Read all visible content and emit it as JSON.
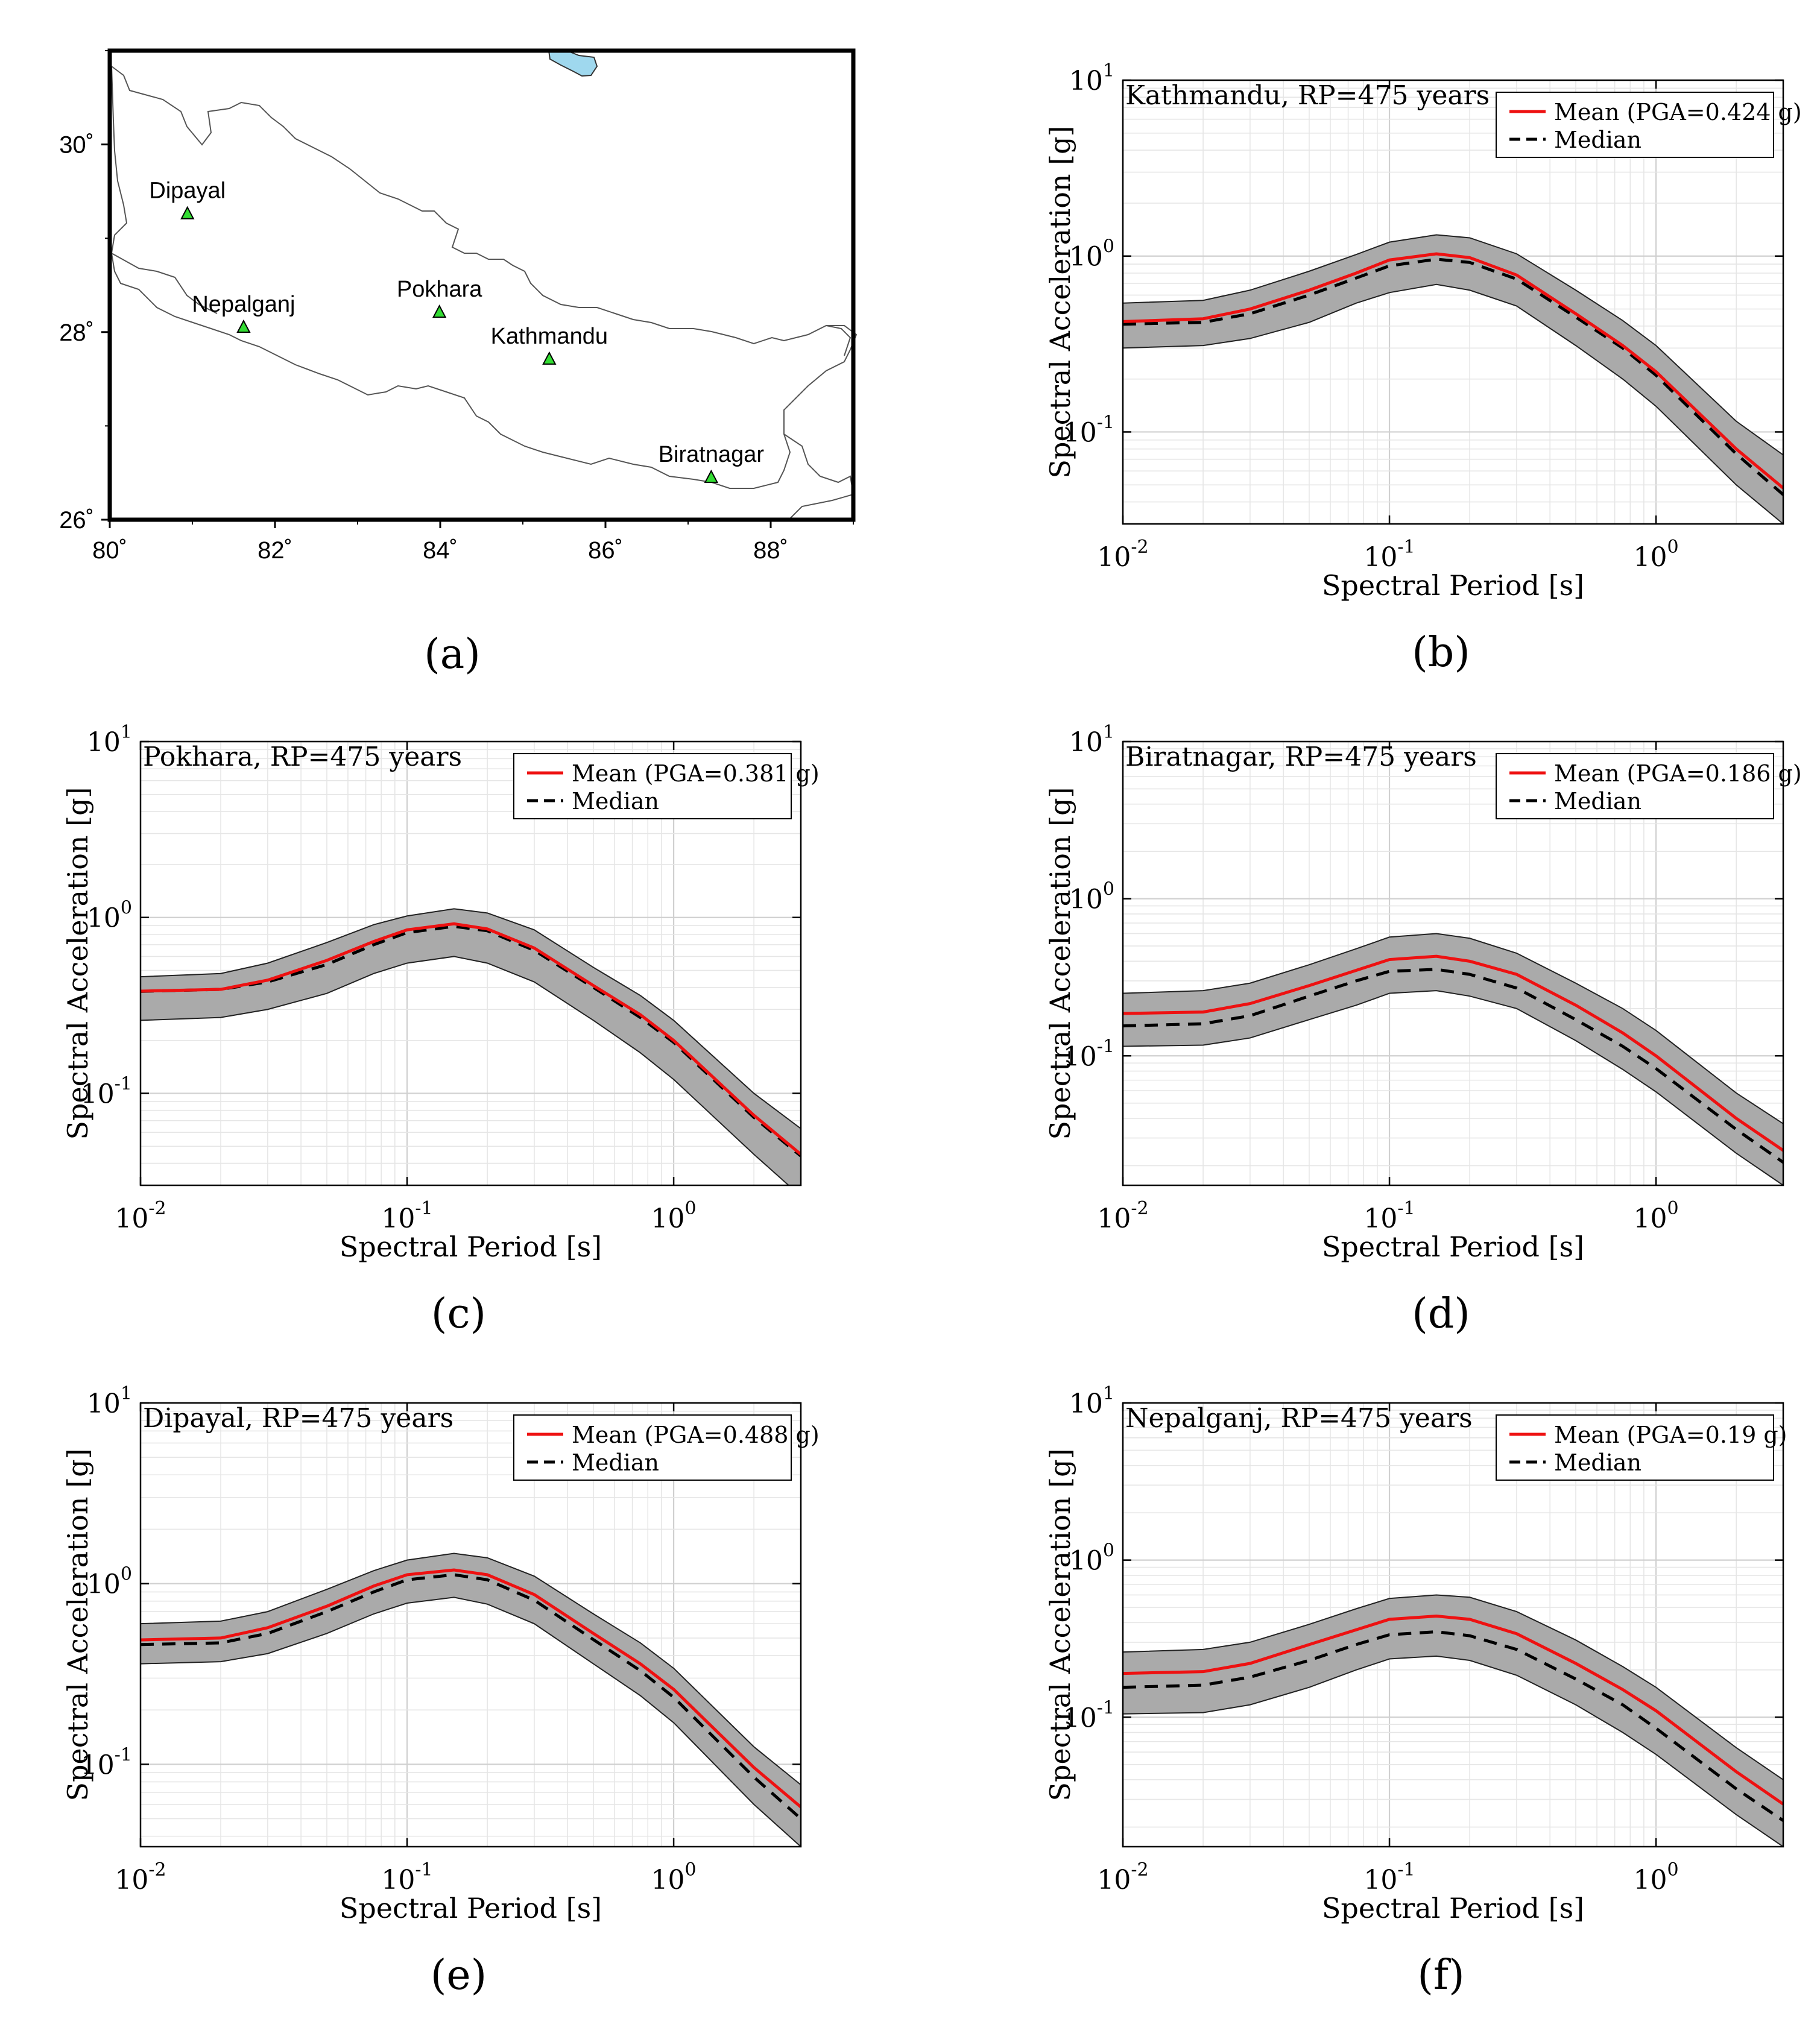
{
  "map": {
    "x_ticks": [
      "80˚",
      "82˚",
      "84˚",
      "86˚",
      "88˚"
    ],
    "y_ticks": [
      "26˚",
      "28˚",
      "30˚"
    ],
    "x_range": [
      80,
      89
    ],
    "y_range": [
      26,
      31
    ],
    "cities": [
      {
        "name": "Dipayal",
        "lon": 80.94,
        "lat": 29.26
      },
      {
        "name": "Nepalganj",
        "lon": 81.62,
        "lat": 28.05
      },
      {
        "name": "Pokhara",
        "lon": 83.99,
        "lat": 28.21
      },
      {
        "name": "Kathmandu",
        "lon": 85.32,
        "lat": 27.71
      },
      {
        "name": "Biratnagar",
        "lon": 87.28,
        "lat": 26.45
      }
    ],
    "marker_color": "#33dd33",
    "lake_color": "#9fd8ee",
    "panel_label": "(a)"
  },
  "axis_common": {
    "xlabel": "Spectral Period [s]",
    "ylabel": "Spectral Acceleration [g]",
    "x_tick_exponents": [
      "-2",
      "-1",
      "0"
    ],
    "y_tick_exponents": [
      "1",
      "0",
      "-1"
    ],
    "tick_base": "10",
    "legend_median": "Median"
  },
  "colors": {
    "mean": "#ee1111",
    "median": "#000000",
    "band": "#aaaaaa"
  },
  "chart_data": [
    {
      "type": "line",
      "title": "Kathmandu, RP=475 years",
      "panel_label": "(b)",
      "legend_mean": "Mean (PGA=0.424 g)",
      "xlim": [
        0.01,
        3
      ],
      "ylim": [
        0.03,
        10
      ],
      "x": [
        0.01,
        0.02,
        0.03,
        0.05,
        0.075,
        0.1,
        0.15,
        0.2,
        0.3,
        0.5,
        0.75,
        1.0,
        2.0,
        3.0
      ],
      "series": [
        {
          "name": "Mean",
          "values": [
            0.424,
            0.44,
            0.5,
            0.64,
            0.8,
            0.95,
            1.03,
            0.98,
            0.78,
            0.47,
            0.31,
            0.22,
            0.08,
            0.048
          ]
        },
        {
          "name": "Median",
          "values": [
            0.41,
            0.42,
            0.47,
            0.6,
            0.75,
            0.88,
            0.96,
            0.92,
            0.74,
            0.45,
            0.3,
            0.21,
            0.075,
            0.044
          ]
        },
        {
          "name": "Upper",
          "values": [
            0.54,
            0.56,
            0.64,
            0.82,
            1.02,
            1.2,
            1.32,
            1.27,
            1.03,
            0.64,
            0.43,
            0.31,
            0.115,
            0.074
          ]
        },
        {
          "name": "Lower",
          "values": [
            0.3,
            0.31,
            0.34,
            0.42,
            0.54,
            0.62,
            0.69,
            0.64,
            0.52,
            0.31,
            0.2,
            0.14,
            0.05,
            0.03
          ]
        }
      ]
    },
    {
      "type": "line",
      "title": "Pokhara, RP=475 years",
      "panel_label": "(c)",
      "legend_mean": "Mean (PGA=0.381 g)",
      "xlim": [
        0.01,
        3
      ],
      "ylim": [
        0.03,
        10
      ],
      "x": [
        0.01,
        0.02,
        0.03,
        0.05,
        0.075,
        0.1,
        0.15,
        0.2,
        0.3,
        0.5,
        0.75,
        1.0,
        2.0,
        3.0
      ],
      "series": [
        {
          "name": "Mean",
          "values": [
            0.381,
            0.39,
            0.44,
            0.57,
            0.73,
            0.85,
            0.92,
            0.86,
            0.67,
            0.41,
            0.28,
            0.2,
            0.075,
            0.045
          ]
        },
        {
          "name": "Median",
          "values": [
            0.38,
            0.39,
            0.43,
            0.54,
            0.7,
            0.82,
            0.89,
            0.84,
            0.65,
            0.4,
            0.27,
            0.195,
            0.073,
            0.044
          ]
        },
        {
          "name": "Upper",
          "values": [
            0.46,
            0.48,
            0.55,
            0.72,
            0.91,
            1.02,
            1.12,
            1.06,
            0.85,
            0.52,
            0.36,
            0.26,
            0.1,
            0.063
          ]
        },
        {
          "name": "Lower",
          "values": [
            0.26,
            0.27,
            0.3,
            0.37,
            0.48,
            0.55,
            0.6,
            0.55,
            0.43,
            0.26,
            0.17,
            0.12,
            0.045,
            0.026
          ]
        }
      ]
    },
    {
      "type": "line",
      "title": "Biratnagar, RP=475 years",
      "panel_label": "(d)",
      "legend_mean": "Mean (PGA=0.186 g)",
      "xlim": [
        0.01,
        3
      ],
      "ylim": [
        0.015,
        10
      ],
      "x": [
        0.01,
        0.02,
        0.03,
        0.05,
        0.075,
        0.1,
        0.15,
        0.2,
        0.3,
        0.5,
        0.75,
        1.0,
        2.0,
        3.0
      ],
      "series": [
        {
          "name": "Mean",
          "values": [
            0.186,
            0.19,
            0.215,
            0.28,
            0.35,
            0.41,
            0.43,
            0.4,
            0.33,
            0.21,
            0.14,
            0.1,
            0.04,
            0.025
          ]
        },
        {
          "name": "Median",
          "values": [
            0.155,
            0.16,
            0.18,
            0.24,
            0.3,
            0.345,
            0.355,
            0.33,
            0.27,
            0.17,
            0.115,
            0.083,
            0.034,
            0.021
          ]
        },
        {
          "name": "Upper",
          "values": [
            0.25,
            0.26,
            0.29,
            0.38,
            0.48,
            0.57,
            0.6,
            0.56,
            0.45,
            0.29,
            0.2,
            0.145,
            0.058,
            0.037
          ]
        },
        {
          "name": "Lower",
          "values": [
            0.115,
            0.117,
            0.13,
            0.17,
            0.21,
            0.25,
            0.26,
            0.24,
            0.2,
            0.125,
            0.082,
            0.059,
            0.024,
            0.015
          ]
        }
      ]
    },
    {
      "type": "line",
      "title": "Dipayal, RP=475 years",
      "panel_label": "(e)",
      "legend_mean": "Mean (PGA=0.488 g)",
      "xlim": [
        0.01,
        3
      ],
      "ylim": [
        0.035,
        10
      ],
      "x": [
        0.01,
        0.02,
        0.03,
        0.05,
        0.075,
        0.1,
        0.15,
        0.2,
        0.3,
        0.5,
        0.75,
        1.0,
        2.0,
        3.0
      ],
      "series": [
        {
          "name": "Mean",
          "values": [
            0.488,
            0.5,
            0.57,
            0.75,
            0.97,
            1.12,
            1.19,
            1.12,
            0.87,
            0.53,
            0.36,
            0.26,
            0.096,
            0.058
          ]
        },
        {
          "name": "Median",
          "values": [
            0.46,
            0.47,
            0.53,
            0.7,
            0.9,
            1.05,
            1.12,
            1.05,
            0.81,
            0.49,
            0.33,
            0.235,
            0.085,
            0.05
          ]
        },
        {
          "name": "Upper",
          "values": [
            0.6,
            0.62,
            0.7,
            0.93,
            1.18,
            1.35,
            1.47,
            1.39,
            1.1,
            0.68,
            0.47,
            0.34,
            0.125,
            0.077
          ]
        },
        {
          "name": "Lower",
          "values": [
            0.36,
            0.37,
            0.41,
            0.53,
            0.68,
            0.78,
            0.84,
            0.77,
            0.6,
            0.36,
            0.24,
            0.17,
            0.06,
            0.035
          ]
        }
      ]
    },
    {
      "type": "line",
      "title": "Nepalganj, RP=475 years",
      "panel_label": "(f)",
      "legend_mean": "Mean (PGA=0.19 g)",
      "xlim": [
        0.01,
        3
      ],
      "ylim": [
        0.015,
        10
      ],
      "x": [
        0.01,
        0.02,
        0.03,
        0.05,
        0.075,
        0.1,
        0.15,
        0.2,
        0.3,
        0.5,
        0.75,
        1.0,
        2.0,
        3.0
      ],
      "series": [
        {
          "name": "Mean",
          "values": [
            0.19,
            0.195,
            0.22,
            0.29,
            0.36,
            0.42,
            0.44,
            0.42,
            0.34,
            0.22,
            0.15,
            0.11,
            0.045,
            0.028
          ]
        },
        {
          "name": "Median",
          "values": [
            0.155,
            0.16,
            0.18,
            0.23,
            0.29,
            0.335,
            0.35,
            0.33,
            0.27,
            0.175,
            0.12,
            0.085,
            0.035,
            0.022
          ]
        },
        {
          "name": "Upper",
          "values": [
            0.26,
            0.27,
            0.3,
            0.39,
            0.49,
            0.57,
            0.6,
            0.58,
            0.47,
            0.31,
            0.21,
            0.155,
            0.064,
            0.04
          ]
        },
        {
          "name": "Lower",
          "values": [
            0.105,
            0.107,
            0.12,
            0.155,
            0.2,
            0.235,
            0.245,
            0.23,
            0.185,
            0.12,
            0.08,
            0.058,
            0.024,
            0.015
          ]
        }
      ]
    }
  ]
}
